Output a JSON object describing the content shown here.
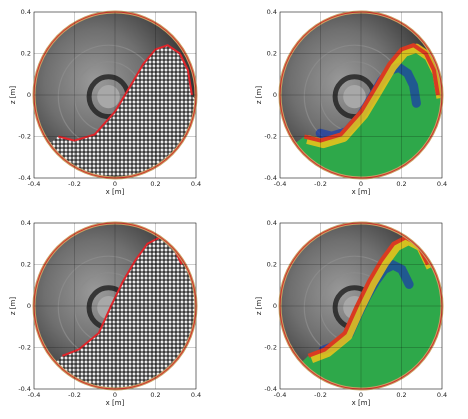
{
  "chart_data": [
    {
      "type": "scatter",
      "panel": "top-left",
      "xlabel": "x [m]",
      "ylabel": "z [m]",
      "xlim": [
        -0.4,
        0.4
      ],
      "ylim": [
        -0.4,
        0.4
      ],
      "xticks": [
        -0.4,
        -0.2,
        0,
        0.2,
        0.4
      ],
      "yticks": [
        -0.4,
        -0.2,
        0,
        0.2,
        0.4
      ],
      "tick_labels_x": [
        "-0.4",
        "-0.2",
        "0",
        "0.2",
        "0.4"
      ],
      "tick_labels_y": [
        "-0.4",
        "-0.2",
        "0",
        "0.2",
        "0.4"
      ],
      "grid": true,
      "overlay": "photo",
      "drum_radius": 0.4,
      "outline_color": "#e0242a",
      "free_surface": [
        [
          -0.28,
          -0.2
        ],
        [
          -0.2,
          -0.22
        ],
        [
          -0.1,
          -0.19
        ],
        [
          0.0,
          -0.08
        ],
        [
          0.08,
          0.05
        ],
        [
          0.14,
          0.15
        ],
        [
          0.2,
          0.22
        ],
        [
          0.26,
          0.24
        ],
        [
          0.32,
          0.2
        ],
        [
          0.36,
          0.12
        ],
        [
          0.38,
          0.0
        ]
      ]
    },
    {
      "type": "scatter",
      "panel": "top-right",
      "xlabel": "x [m]",
      "ylabel": "z [m]",
      "xlim": [
        -0.4,
        0.4
      ],
      "ylim": [
        -0.4,
        0.4
      ],
      "xticks": [
        -0.4,
        -0.2,
        0,
        0.2,
        0.4
      ],
      "yticks": [
        -0.4,
        -0.2,
        0,
        0.2,
        0.4
      ],
      "tick_labels_x": [
        "-0.4",
        "-0.2",
        "0",
        "0.2",
        "0.4"
      ],
      "tick_labels_y": [
        "-0.4",
        "-0.2",
        "0",
        "0.2",
        "0.4"
      ],
      "grid": true,
      "overlay": "velocity-field",
      "drum_radius": 0.4,
      "colors": {
        "fast": "#d93a22",
        "mid": "#f0c419",
        "slow": "#2ea84a",
        "core": "#1c3fa8"
      },
      "free_surface": [
        [
          -0.28,
          -0.2
        ],
        [
          -0.2,
          -0.22
        ],
        [
          -0.1,
          -0.19
        ],
        [
          0.0,
          -0.08
        ],
        [
          0.08,
          0.05
        ],
        [
          0.14,
          0.15
        ],
        [
          0.2,
          0.22
        ],
        [
          0.26,
          0.24
        ],
        [
          0.32,
          0.2
        ],
        [
          0.36,
          0.12
        ],
        [
          0.38,
          0.0
        ]
      ]
    },
    {
      "type": "scatter",
      "panel": "bottom-left",
      "xlabel": "x [m]",
      "ylabel": "z [m]",
      "xlim": [
        -0.4,
        0.4
      ],
      "ylim": [
        -0.4,
        0.4
      ],
      "xticks": [
        -0.4,
        -0.2,
        0,
        0.2,
        0.4
      ],
      "yticks": [
        -0.4,
        -0.2,
        0,
        0.2,
        0.4
      ],
      "tick_labels_x": [
        "-0.4",
        "-0.2",
        "0",
        "0.2",
        "0.4"
      ],
      "tick_labels_y": [
        "-0.4",
        "-0.2",
        "0",
        "0.2",
        "0.4"
      ],
      "grid": true,
      "overlay": "photo",
      "drum_radius": 0.4,
      "outline_color": "#e0242a",
      "free_surface": [
        [
          -0.26,
          -0.24
        ],
        [
          -0.18,
          -0.21
        ],
        [
          -0.08,
          -0.13
        ],
        [
          -0.02,
          0.0
        ],
        [
          0.04,
          0.12
        ],
        [
          0.1,
          0.22
        ],
        [
          0.16,
          0.3
        ],
        [
          0.22,
          0.33
        ],
        [
          0.28,
          0.3
        ],
        [
          0.33,
          0.2
        ]
      ]
    },
    {
      "type": "scatter",
      "panel": "bottom-right",
      "xlabel": "x [m]",
      "ylabel": "z [m]",
      "xlim": [
        -0.4,
        0.4
      ],
      "ylim": [
        -0.4,
        0.4
      ],
      "xticks": [
        -0.4,
        -0.2,
        0,
        0.2,
        0.4
      ],
      "yticks": [
        -0.4,
        -0.2,
        0,
        0.2,
        0.4
      ],
      "tick_labels_x": [
        "-0.4",
        "-0.2",
        "0",
        "0.2",
        "0.4"
      ],
      "tick_labels_y": [
        "-0.4",
        "-0.2",
        "0",
        "0.2",
        "0.4"
      ],
      "grid": true,
      "overlay": "velocity-field",
      "drum_radius": 0.4,
      "colors": {
        "fast": "#d93a22",
        "mid": "#f0c419",
        "slow": "#2ea84a",
        "core": "#1c3fa8"
      },
      "free_surface": [
        [
          -0.26,
          -0.24
        ],
        [
          -0.18,
          -0.21
        ],
        [
          -0.08,
          -0.13
        ],
        [
          -0.02,
          0.0
        ],
        [
          0.04,
          0.12
        ],
        [
          0.1,
          0.22
        ],
        [
          0.16,
          0.3
        ],
        [
          0.22,
          0.33
        ],
        [
          0.28,
          0.3
        ],
        [
          0.33,
          0.2
        ]
      ]
    }
  ]
}
